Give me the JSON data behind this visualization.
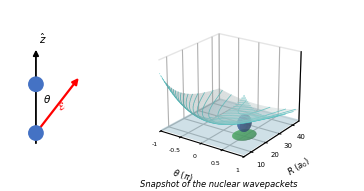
{
  "title": "Snapshot of the nuclear wavepackets",
  "left_panel": {
    "z_hat_label": "$\\hat{z}$",
    "theta_label": "$\\theta$",
    "E_label": "$\\mathcal{E}$",
    "ball_color": "#4472C4",
    "arrow_color": "red",
    "axis_color": "black"
  },
  "right_panel": {
    "theta_range": [
      -1.0,
      1.0
    ],
    "R_range": [
      5,
      45
    ],
    "contour_color": "#40C0C0",
    "surface_color_top": "#D8F0F0",
    "base_plane_color": "#90EE90",
    "wavepacket_blue": "#1A3A99",
    "wavepacket_green": "#32CD32",
    "xlabel": "$\\theta\\ (\\pi)$",
    "ylabel": "$R\\ (a_0)$",
    "theta_ticks": [
      -1,
      -0.5,
      0,
      0.5,
      1
    ],
    "R_ticks": [
      10,
      20,
      30,
      40
    ],
    "elev": 22,
    "azim": -55
  },
  "background_color": "white",
  "caption": "Snapshot of the nuclear wavepackets"
}
